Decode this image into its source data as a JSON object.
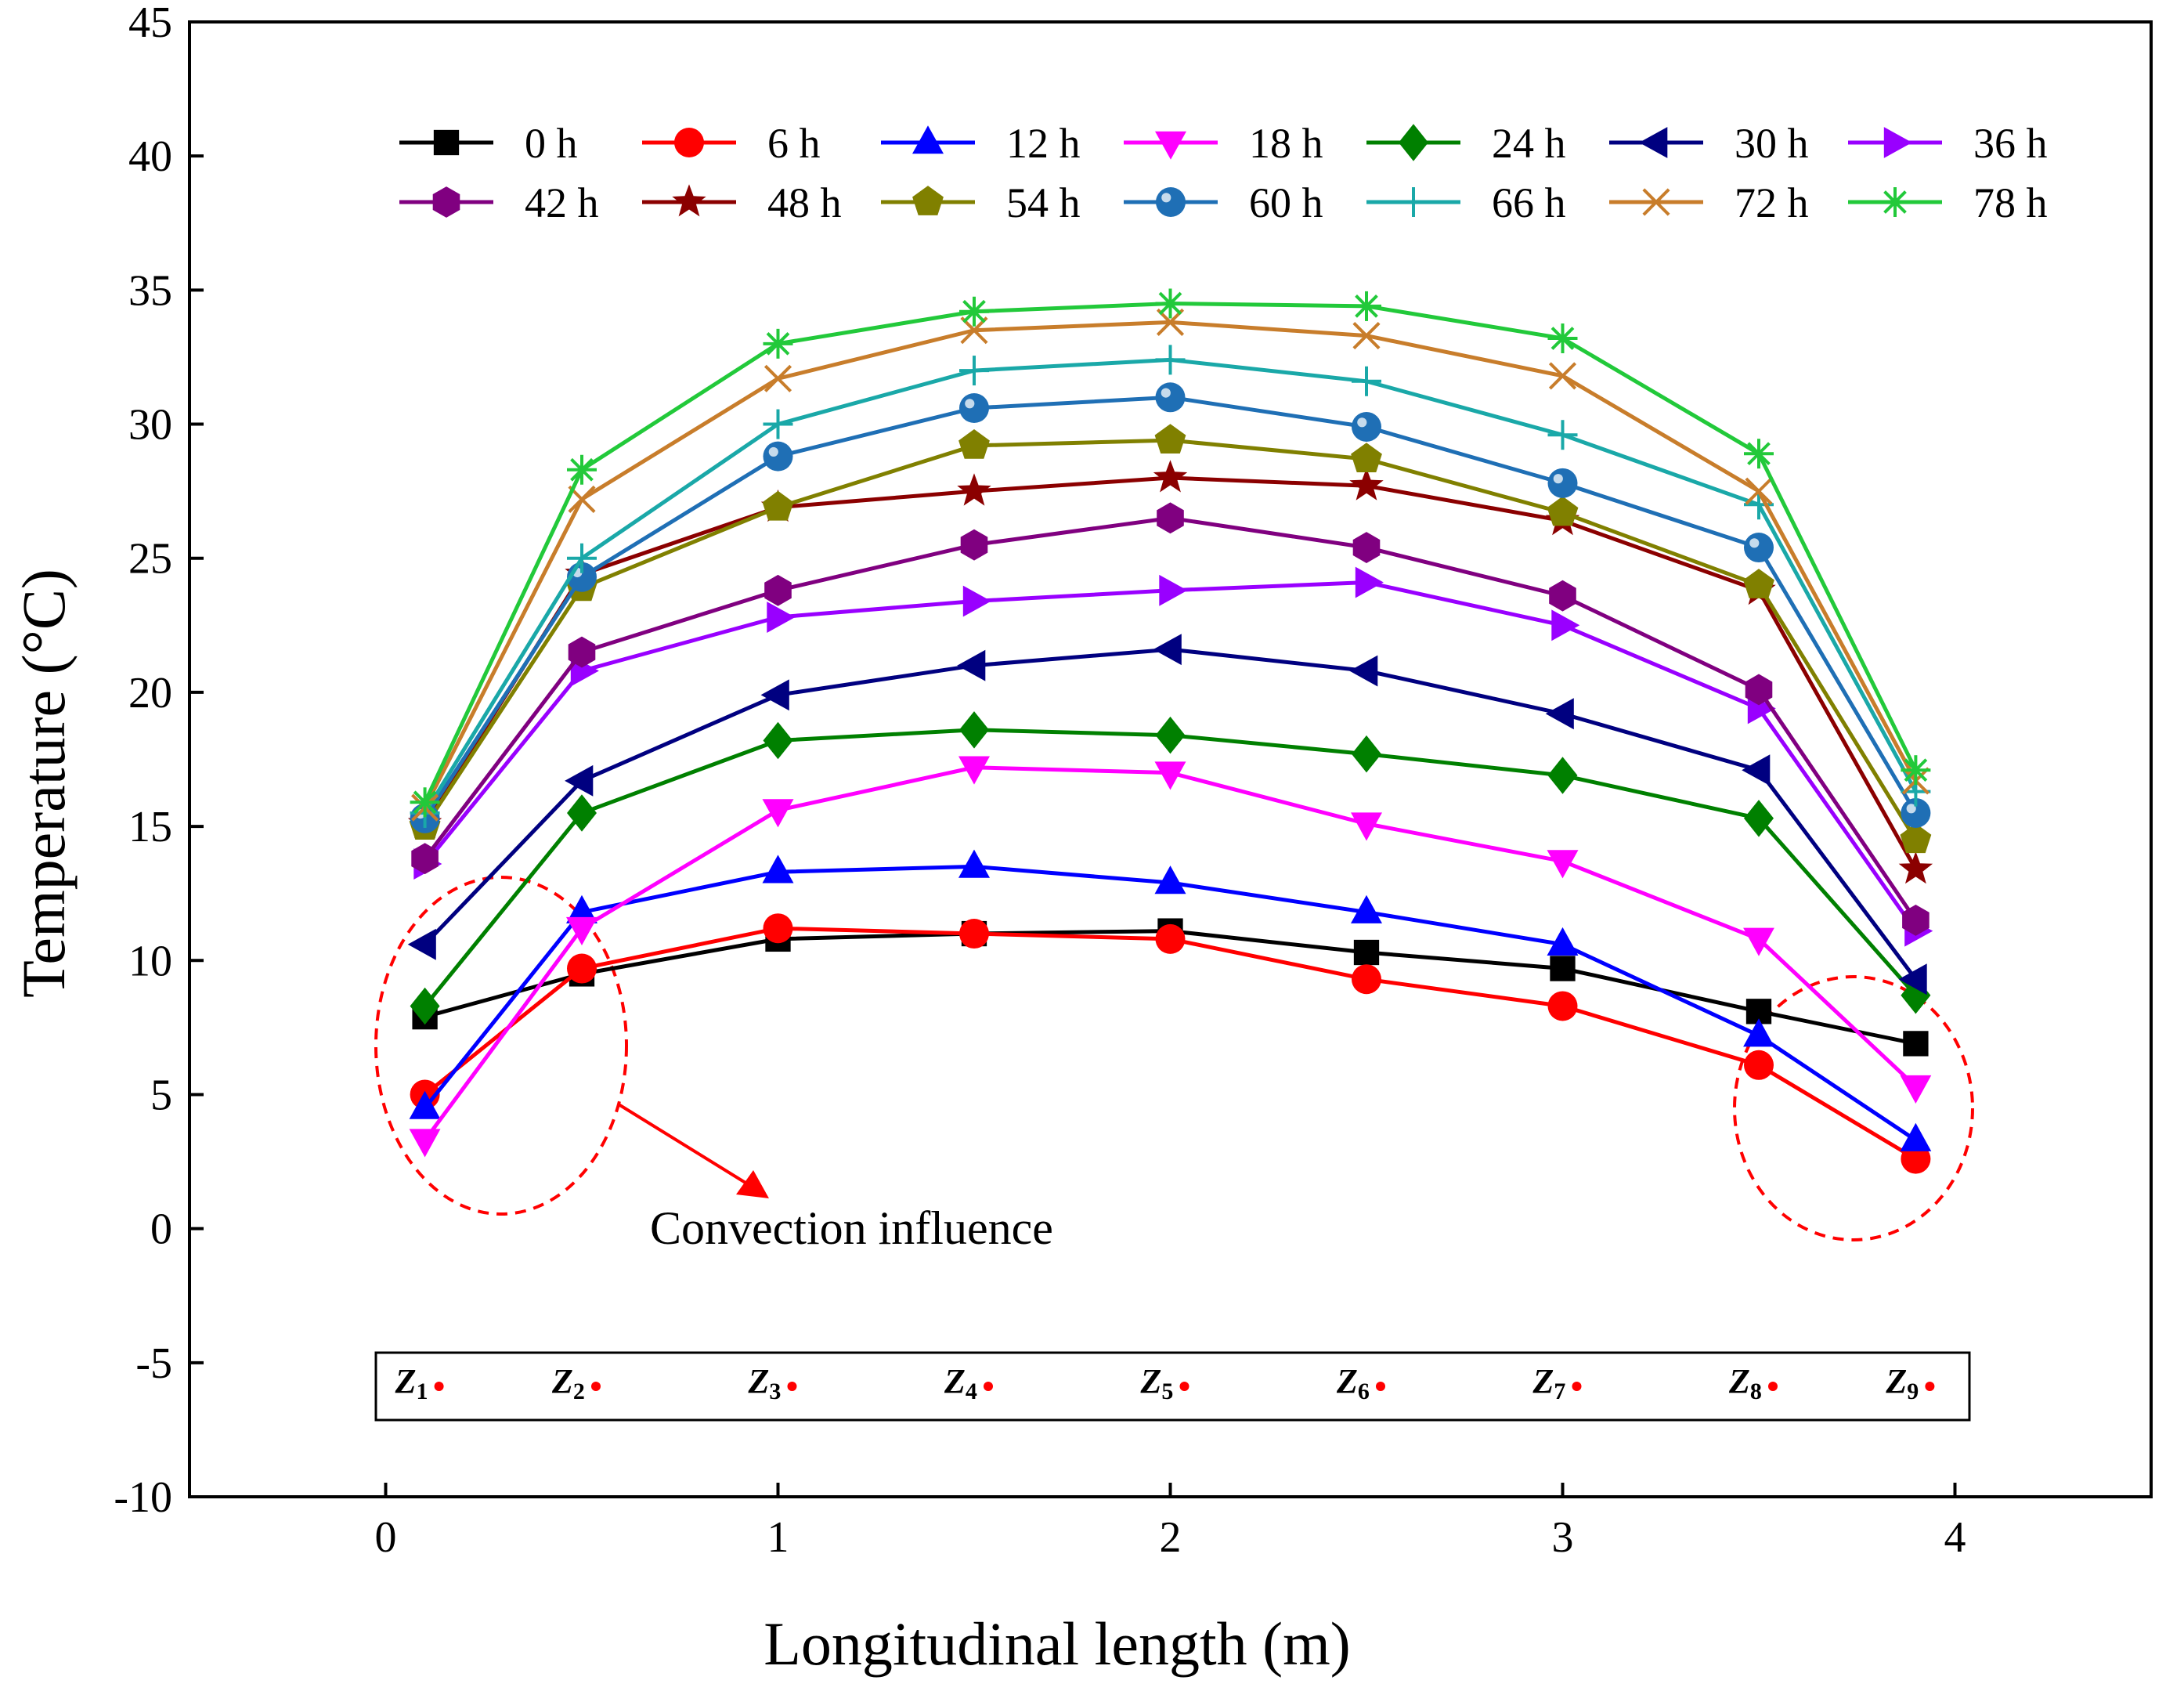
{
  "chart_data": {
    "type": "line",
    "xlabel": "Longitudinal length (m)",
    "ylabel": "Temperature (°C)",
    "xlim": [
      -0.5,
      4.5
    ],
    "ylim": [
      -10,
      45
    ],
    "xticks": [
      0,
      1,
      2,
      3,
      4
    ],
    "yticks": [
      -10,
      -5,
      0,
      5,
      10,
      15,
      20,
      25,
      30,
      35,
      40,
      45
    ],
    "x": [
      0.1,
      0.5,
      1.0,
      1.5,
      2.0,
      2.5,
      3.0,
      3.5,
      3.9
    ],
    "legend_position": "top",
    "series": [
      {
        "name": "0 h",
        "color": "#000000",
        "marker": "square",
        "values": [
          7.9,
          9.5,
          10.8,
          11.0,
          11.1,
          10.3,
          9.7,
          8.1,
          6.9
        ]
      },
      {
        "name": "6 h",
        "color": "#ff0000",
        "marker": "circle",
        "values": [
          5.0,
          9.7,
          11.2,
          11.0,
          10.8,
          9.3,
          8.3,
          6.1,
          2.6
        ]
      },
      {
        "name": "12 h",
        "color": "#0000ff",
        "marker": "triangle-up",
        "values": [
          4.5,
          11.8,
          13.3,
          13.5,
          12.9,
          11.8,
          10.6,
          7.2,
          3.3
        ]
      },
      {
        "name": "18 h",
        "color": "#ff00ff",
        "marker": "triangle-down",
        "values": [
          3.3,
          11.2,
          15.6,
          17.2,
          17.0,
          15.1,
          13.7,
          10.8,
          5.3
        ]
      },
      {
        "name": "24 h",
        "color": "#008000",
        "marker": "diamond",
        "values": [
          8.3,
          15.5,
          18.2,
          18.6,
          18.4,
          17.7,
          16.9,
          15.3,
          8.7
        ]
      },
      {
        "name": "30 h",
        "color": "#000080",
        "marker": "triangle-left",
        "values": [
          10.6,
          16.7,
          19.9,
          21.0,
          21.6,
          20.8,
          19.2,
          17.1,
          9.3
        ]
      },
      {
        "name": "36 h",
        "color": "#9900ff",
        "marker": "triangle-right",
        "values": [
          13.6,
          20.8,
          22.8,
          23.4,
          23.8,
          24.1,
          22.5,
          19.4,
          11.1
        ]
      },
      {
        "name": "42 h",
        "color": "#800080",
        "marker": "hexagon",
        "values": [
          13.8,
          21.5,
          23.8,
          25.5,
          26.5,
          25.4,
          23.6,
          20.1,
          11.5
        ]
      },
      {
        "name": "48 h",
        "color": "#8b0000",
        "marker": "star",
        "values": [
          15.1,
          24.4,
          26.9,
          27.5,
          28.0,
          27.7,
          26.4,
          23.8,
          13.4
        ]
      },
      {
        "name": "54 h",
        "color": "#808000",
        "marker": "pentagon",
        "values": [
          15.0,
          23.9,
          26.9,
          29.2,
          29.4,
          28.7,
          26.7,
          24.0,
          14.5
        ]
      },
      {
        "name": "60 h",
        "color": "#1f6fb5",
        "marker": "sphere",
        "values": [
          15.3,
          24.3,
          28.8,
          30.6,
          31.0,
          29.9,
          27.8,
          25.4,
          15.5
        ]
      },
      {
        "name": "66 h",
        "color": "#1aa8a8",
        "marker": "plus",
        "values": [
          15.5,
          25.0,
          30.0,
          32.0,
          32.4,
          31.6,
          29.6,
          27.0,
          16.3
        ]
      },
      {
        "name": "72 h",
        "color": "#c87d2b",
        "marker": "x",
        "values": [
          15.7,
          27.2,
          31.7,
          33.5,
          33.8,
          33.3,
          31.8,
          27.5,
          16.7
        ]
      },
      {
        "name": "78 h",
        "color": "#22c93a",
        "marker": "asterisk",
        "values": [
          15.9,
          28.3,
          33.0,
          34.2,
          34.5,
          34.4,
          33.2,
          28.9,
          17.1
        ]
      }
    ],
    "annotation": "Convection influence",
    "zones": [
      {
        "label": "Z",
        "sub": "1",
        "x": 0.1
      },
      {
        "label": "Z",
        "sub": "2",
        "x": 0.5
      },
      {
        "label": "Z",
        "sub": "3",
        "x": 1.0
      },
      {
        "label": "Z",
        "sub": "4",
        "x": 1.5
      },
      {
        "label": "Z",
        "sub": "5",
        "x": 2.0
      },
      {
        "label": "Z",
        "sub": "6",
        "x": 2.5
      },
      {
        "label": "Z",
        "sub": "7",
        "x": 3.0
      },
      {
        "label": "Z",
        "sub": "8",
        "x": 3.5
      },
      {
        "label": "Z",
        "sub": "9",
        "x": 3.9
      }
    ]
  }
}
